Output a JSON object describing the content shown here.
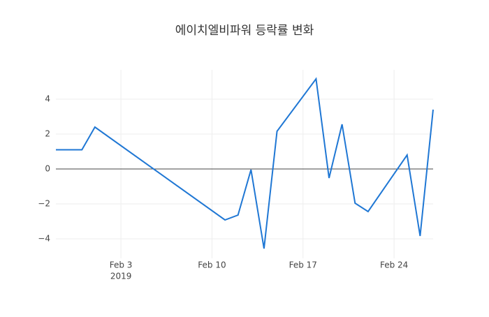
{
  "chart_data": {
    "type": "line",
    "title": "에이치엘비파워 등락률 변화",
    "x": [
      "2019-01-29",
      "2019-01-30",
      "2019-01-31",
      "2019-02-01",
      "2019-02-11",
      "2019-02-12",
      "2019-02-13",
      "2019-02-14",
      "2019-02-15",
      "2019-02-18",
      "2019-02-19",
      "2019-02-20",
      "2019-02-21",
      "2019-02-22",
      "2019-02-25",
      "2019-02-26",
      "2019-02-27"
    ],
    "series": [
      {
        "color": "#1f77d4",
        "values": [
          1.1,
          1.1,
          1.1,
          2.4,
          -2.92,
          -2.64,
          -0.04,
          -4.56,
          2.16,
          5.16,
          -0.52,
          2.56,
          -1.96,
          -2.44,
          0.8,
          -3.84,
          3.4
        ]
      }
    ],
    "xlim": [
      "2019-01-29",
      "2019-02-27"
    ],
    "xticks": [
      {
        "value": "2019-02-03",
        "label": "Feb 3"
      },
      {
        "value": "2019-02-10",
        "label": "Feb 10"
      },
      {
        "value": "2019-02-17",
        "label": "Feb 17"
      },
      {
        "value": "2019-02-24",
        "label": "Feb 24"
      }
    ],
    "xtick_year": "2019",
    "ylim": [
      -5.12,
      5.68
    ],
    "yticks": [
      {
        "value": -4,
        "label": "−4"
      },
      {
        "value": -2,
        "label": "−2"
      },
      0,
      2,
      4
    ],
    "grid": true,
    "zero_line": true
  }
}
